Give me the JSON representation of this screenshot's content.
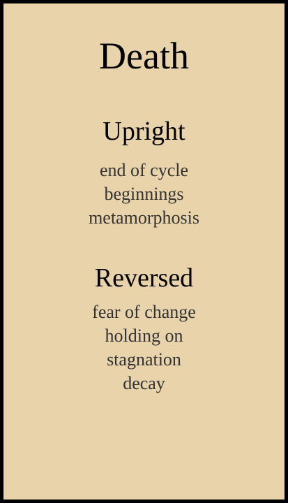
{
  "card": {
    "title": "Death",
    "upright": {
      "heading": "Upright",
      "keywords": [
        "end of cycle",
        "beginnings",
        "metamorphosis"
      ]
    },
    "reversed": {
      "heading": "Reversed",
      "keywords": [
        "fear of change",
        "holding on",
        "stagnation",
        "decay"
      ]
    },
    "colors": {
      "background": "#e8d3ab",
      "border": "#000000",
      "heading_text": "#000000",
      "keyword_text": "#333333"
    }
  }
}
